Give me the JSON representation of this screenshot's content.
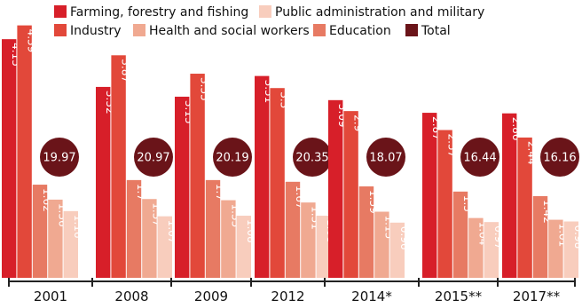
{
  "chart_data": {
    "type": "bar",
    "categories": [
      "2001",
      "2008",
      "2009",
      "2012",
      "2014*",
      "2015**",
      "2017**"
    ],
    "series": [
      {
        "name": "Farming, forestry and fishing",
        "color": "#d71f29",
        "values": [
          4.15,
          3.32,
          3.15,
          3.51,
          3.09,
          2.87,
          2.86
        ]
      },
      {
        "name": "Industry",
        "color": "#e2483a",
        "values": [
          4.39,
          3.87,
          3.55,
          3.3,
          2.9,
          2.57,
          2.44
        ]
      },
      {
        "name": "Education",
        "color": "#e77a63",
        "values": [
          1.62,
          1.7,
          1.7,
          1.67,
          1.59,
          1.5,
          1.42
        ]
      },
      {
        "name": "Health and social workers",
        "color": "#f0a991",
        "values": [
          1.36,
          1.37,
          1.35,
          1.31,
          1.15,
          1.04,
          1.01
        ]
      },
      {
        "name": "Public administration and military",
        "color": "#f8cdbd",
        "values": [
          1.16,
          1.07,
          1.08,
          1.08,
          0.96,
          0.97,
          0.98
        ]
      }
    ],
    "totals": {
      "name": "Total",
      "color": "#6a1419",
      "values": [
        19.97,
        20.97,
        20.19,
        20.35,
        18.07,
        16.44,
        16.16
      ]
    },
    "legend": [
      {
        "label": "Farming, forestry and fishing",
        "color": "#d71f29"
      },
      {
        "label": "Public administration and military",
        "color": "#f8cdbd"
      },
      {
        "label": "Industry",
        "color": "#e2483a"
      },
      {
        "label": "Health and social workers",
        "color": "#f0a991"
      },
      {
        "label": "Education",
        "color": "#e77a63"
      },
      {
        "label": "Total",
        "color": "#6a1419"
      }
    ],
    "legend_placement": "top",
    "ylim": [
      0,
      4.6
    ],
    "grid": false
  }
}
